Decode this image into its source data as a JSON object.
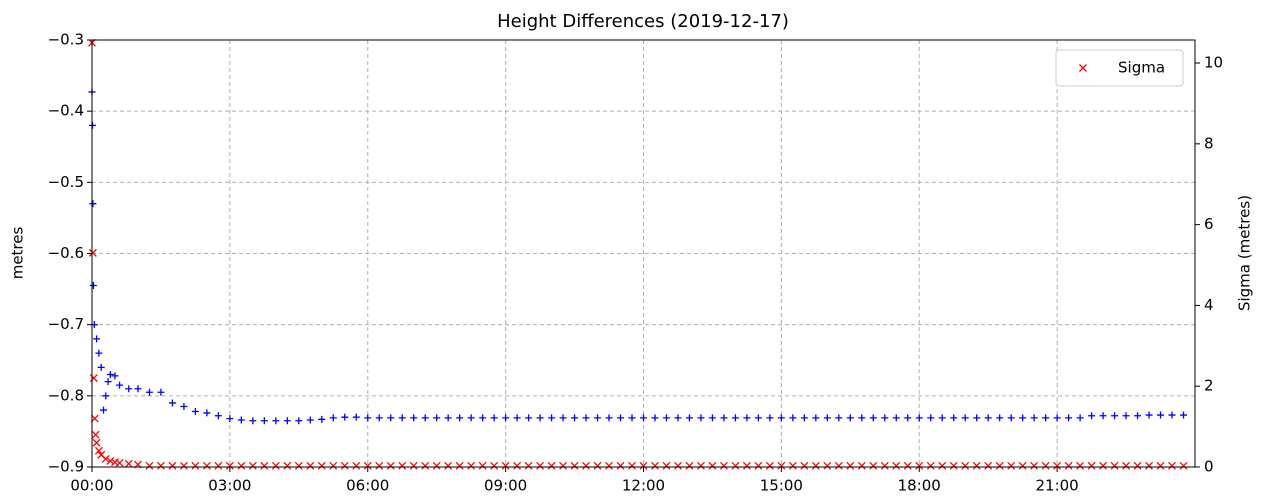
{
  "chart_data": {
    "type": "scatter",
    "title": "Height Differences (2019-12-17)",
    "ylabel": "metres",
    "y2label": "Sigma (metres)",
    "xlim": [
      0,
      24
    ],
    "xticks": [
      {
        "value": 0,
        "label": "00:00"
      },
      {
        "value": 3,
        "label": "03:00"
      },
      {
        "value": 6,
        "label": "06:00"
      },
      {
        "value": 9,
        "label": "09:00"
      },
      {
        "value": 12,
        "label": "12:00"
      },
      {
        "value": 15,
        "label": "15:00"
      },
      {
        "value": 18,
        "label": "18:00"
      },
      {
        "value": 21,
        "label": "21:00"
      }
    ],
    "ylim": [
      -0.9,
      -0.3
    ],
    "yticks": [
      {
        "value": -0.9,
        "label": "−0.9"
      },
      {
        "value": -0.8,
        "label": "−0.8"
      },
      {
        "value": -0.7,
        "label": "−0.7"
      },
      {
        "value": -0.6,
        "label": "−0.6"
      },
      {
        "value": -0.5,
        "label": "−0.5"
      },
      {
        "value": -0.4,
        "label": "−0.4"
      },
      {
        "value": -0.3,
        "label": "−0.3"
      }
    ],
    "y2lim": [
      0,
      10.57
    ],
    "y2ticks": [
      0,
      2,
      4,
      6,
      8,
      10
    ],
    "grid": true,
    "legend": "upper right",
    "series": [
      {
        "color": "#0000ff",
        "marker": "+",
        "x": [
          0,
          0.01,
          0.02,
          0.03,
          0.05,
          0.1,
          0.15,
          0.2,
          0.25,
          0.3,
          0.35,
          0.4,
          0.5,
          0.6,
          0.8,
          1,
          1.25,
          1.5,
          1.75,
          2,
          2.25,
          2.5,
          2.75,
          3,
          3.25,
          3.5,
          3.75,
          4,
          4.25,
          4.5,
          4.75,
          5,
          5.25,
          5.5,
          5.75,
          6,
          6.25,
          6.5,
          6.75,
          7,
          7.25,
          7.5,
          7.75,
          8,
          8.25,
          8.5,
          8.75,
          9,
          9.25,
          9.5,
          9.75,
          10,
          10.25,
          10.5,
          10.75,
          11,
          11.25,
          11.5,
          11.75,
          12,
          12.25,
          12.5,
          12.75,
          13,
          13.25,
          13.5,
          13.75,
          14,
          14.25,
          14.5,
          14.75,
          15,
          15.25,
          15.5,
          15.75,
          16,
          16.25,
          16.5,
          16.75,
          17,
          17.25,
          17.5,
          17.75,
          18,
          18.25,
          18.5,
          18.75,
          19,
          19.25,
          19.5,
          19.75,
          20,
          20.25,
          20.5,
          20.75,
          21,
          21.25,
          21.5,
          21.75,
          22,
          22.25,
          22.5,
          22.75,
          23,
          23.25,
          23.5,
          23.75
        ],
        "values": [
          -0.373,
          -0.42,
          -0.53,
          -0.645,
          -0.7,
          -0.72,
          -0.74,
          -0.76,
          -0.82,
          -0.8,
          -0.78,
          -0.77,
          -0.772,
          -0.785,
          -0.79,
          -0.79,
          -0.795,
          -0.795,
          -0.81,
          -0.815,
          -0.822,
          -0.824,
          -0.828,
          -0.832,
          -0.834,
          -0.835,
          -0.835,
          -0.835,
          -0.835,
          -0.835,
          -0.834,
          -0.833,
          -0.831,
          -0.83,
          -0.83,
          -0.831,
          -0.831,
          -0.831,
          -0.831,
          -0.831,
          -0.831,
          -0.831,
          -0.831,
          -0.831,
          -0.831,
          -0.831,
          -0.831,
          -0.831,
          -0.831,
          -0.831,
          -0.831,
          -0.831,
          -0.831,
          -0.831,
          -0.831,
          -0.831,
          -0.831,
          -0.831,
          -0.831,
          -0.831,
          -0.831,
          -0.831,
          -0.831,
          -0.831,
          -0.831,
          -0.831,
          -0.831,
          -0.831,
          -0.831,
          -0.831,
          -0.831,
          -0.831,
          -0.831,
          -0.831,
          -0.831,
          -0.831,
          -0.831,
          -0.831,
          -0.831,
          -0.831,
          -0.831,
          -0.831,
          -0.831,
          -0.831,
          -0.831,
          -0.831,
          -0.831,
          -0.831,
          -0.831,
          -0.831,
          -0.831,
          -0.831,
          -0.831,
          -0.831,
          -0.831,
          -0.831,
          -0.831,
          -0.831,
          -0.828,
          -0.828,
          -0.828,
          -0.828,
          -0.828,
          -0.827,
          -0.827,
          -0.827,
          -0.827
        ]
      },
      {
        "name": "Sigma",
        "color": "#ff0000",
        "marker": "x",
        "axis": "y2",
        "x": [
          0,
          0.02,
          0.04,
          0.06,
          0.08,
          0.1,
          0.15,
          0.2,
          0.3,
          0.4,
          0.5,
          0.6,
          0.8,
          1,
          1.25,
          1.5,
          1.75,
          2,
          2.25,
          2.5,
          2.75,
          3,
          3.25,
          3.5,
          3.75,
          4,
          4.25,
          4.5,
          4.75,
          5,
          5.25,
          5.5,
          5.75,
          6,
          6.25,
          6.5,
          6.75,
          7,
          7.25,
          7.5,
          7.75,
          8,
          8.25,
          8.5,
          8.75,
          9,
          9.25,
          9.5,
          9.75,
          10,
          10.25,
          10.5,
          10.75,
          11,
          11.25,
          11.5,
          11.75,
          12,
          12.25,
          12.5,
          12.75,
          13,
          13.25,
          13.5,
          13.75,
          14,
          14.25,
          14.5,
          14.75,
          15,
          15.25,
          15.5,
          15.75,
          16,
          16.25,
          16.5,
          16.75,
          17,
          17.25,
          17.5,
          17.75,
          18,
          18.25,
          18.5,
          18.75,
          19,
          19.25,
          19.5,
          19.75,
          20,
          20.25,
          20.5,
          20.75,
          21,
          21.25,
          21.5,
          21.75,
          22,
          22.25,
          22.5,
          22.75,
          23,
          23.25,
          23.5,
          23.75
        ],
        "values": [
          10.5,
          5.3,
          2.2,
          1.2,
          0.8,
          0.6,
          0.4,
          0.3,
          0.2,
          0.15,
          0.12,
          0.1,
          0.08,
          0.06,
          0.03,
          0.03,
          0.03,
          0.03,
          0.03,
          0.03,
          0.03,
          0.03,
          0.03,
          0.03,
          0.03,
          0.03,
          0.03,
          0.03,
          0.03,
          0.03,
          0.03,
          0.03,
          0.03,
          0.03,
          0.03,
          0.03,
          0.03,
          0.03,
          0.03,
          0.03,
          0.03,
          0.03,
          0.03,
          0.03,
          0.03,
          0.03,
          0.03,
          0.03,
          0.03,
          0.03,
          0.03,
          0.03,
          0.03,
          0.03,
          0.03,
          0.03,
          0.03,
          0.03,
          0.03,
          0.03,
          0.03,
          0.03,
          0.03,
          0.03,
          0.03,
          0.03,
          0.03,
          0.03,
          0.03,
          0.03,
          0.03,
          0.03,
          0.03,
          0.03,
          0.03,
          0.03,
          0.03,
          0.03,
          0.03,
          0.03,
          0.03,
          0.03,
          0.03,
          0.03,
          0.03,
          0.03,
          0.03,
          0.03,
          0.03,
          0.03,
          0.03,
          0.03,
          0.03,
          0.03,
          0.03,
          0.03,
          0.03,
          0.03,
          0.03,
          0.03,
          0.03,
          0.03,
          0.03,
          0.03,
          0.03
        ]
      }
    ]
  }
}
